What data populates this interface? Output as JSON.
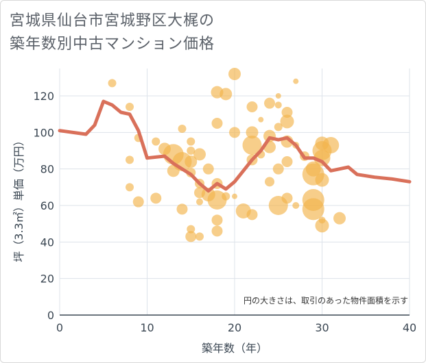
{
  "title_line1": "宮城県仙台市宮城野区大梶の",
  "title_line2": "築年数別中古マンション価格",
  "chart_data": {
    "type": "scatter",
    "title": "宮城県仙台市宮城野区大梶の築年数別中古マンション価格",
    "xlabel": "築年数（年）",
    "ylabel": "坪（3.3㎡）単価（万円）",
    "xlim": [
      0,
      40
    ],
    "ylim": [
      0,
      135
    ],
    "x_ticks": [
      0,
      10,
      20,
      30,
      40
    ],
    "y_ticks": [
      0,
      20,
      40,
      60,
      80,
      100,
      120
    ],
    "grid": true,
    "note": "円の大きさは、取引のあった物件面積を示す",
    "bubble_color": "#f2b44c",
    "line_color": "#d9705a",
    "bubbles": [
      {
        "x": 6,
        "y": 127,
        "r": 6
      },
      {
        "x": 8,
        "y": 114,
        "r": 6
      },
      {
        "x": 9,
        "y": 97,
        "r": 6
      },
      {
        "x": 8,
        "y": 85,
        "r": 6
      },
      {
        "x": 8,
        "y": 70,
        "r": 6
      },
      {
        "x": 9,
        "y": 62,
        "r": 8
      },
      {
        "x": 11,
        "y": 95,
        "r": 6
      },
      {
        "x": 11,
        "y": 64,
        "r": 8
      },
      {
        "x": 12,
        "y": 91,
        "r": 9
      },
      {
        "x": 13,
        "y": 88,
        "r": 15
      },
      {
        "x": 13,
        "y": 79,
        "r": 9
      },
      {
        "x": 14,
        "y": 102,
        "r": 6
      },
      {
        "x": 14,
        "y": 84,
        "r": 14
      },
      {
        "x": 14,
        "y": 58,
        "r": 8
      },
      {
        "x": 15,
        "y": 95,
        "r": 6
      },
      {
        "x": 15,
        "y": 90,
        "r": 6
      },
      {
        "x": 15,
        "y": 84,
        "r": 9
      },
      {
        "x": 15,
        "y": 78,
        "r": 7
      },
      {
        "x": 15,
        "y": 47,
        "r": 6
      },
      {
        "x": 15,
        "y": 43,
        "r": 8
      },
      {
        "x": 16,
        "y": 88,
        "r": 9
      },
      {
        "x": 16,
        "y": 72,
        "r": 7
      },
      {
        "x": 16,
        "y": 67,
        "r": 8
      },
      {
        "x": 16,
        "y": 62,
        "r": 5
      },
      {
        "x": 16,
        "y": 43,
        "r": 6
      },
      {
        "x": 17,
        "y": 80,
        "r": 8
      },
      {
        "x": 17,
        "y": 66,
        "r": 10
      },
      {
        "x": 18,
        "y": 122,
        "r": 9
      },
      {
        "x": 18,
        "y": 105,
        "r": 8
      },
      {
        "x": 18,
        "y": 72,
        "r": 8
      },
      {
        "x": 18,
        "y": 63,
        "r": 14
      },
      {
        "x": 18,
        "y": 52,
        "r": 8
      },
      {
        "x": 18,
        "y": 46,
        "r": 8
      },
      {
        "x": 19,
        "y": 121,
        "r": 9
      },
      {
        "x": 19,
        "y": 65,
        "r": 6
      },
      {
        "x": 20,
        "y": 132,
        "r": 9
      },
      {
        "x": 20,
        "y": 100,
        "r": 8
      },
      {
        "x": 20,
        "y": 65,
        "r": 4
      },
      {
        "x": 21,
        "y": 57,
        "r": 11
      },
      {
        "x": 22,
        "y": 114,
        "r": 8
      },
      {
        "x": 22,
        "y": 100,
        "r": 9
      },
      {
        "x": 22,
        "y": 93,
        "r": 14
      },
      {
        "x": 22,
        "y": 85,
        "r": 8
      },
      {
        "x": 22,
        "y": 55,
        "r": 8
      },
      {
        "x": 23,
        "y": 107,
        "r": 4
      },
      {
        "x": 23,
        "y": 88,
        "r": 6
      },
      {
        "x": 24,
        "y": 116,
        "r": 8
      },
      {
        "x": 24,
        "y": 98,
        "r": 9
      },
      {
        "x": 24,
        "y": 92,
        "r": 9
      },
      {
        "x": 24,
        "y": 73,
        "r": 7
      },
      {
        "x": 25,
        "y": 120,
        "r": 4
      },
      {
        "x": 25,
        "y": 115,
        "r": 5
      },
      {
        "x": 25,
        "y": 103,
        "r": 6
      },
      {
        "x": 25,
        "y": 80,
        "r": 8
      },
      {
        "x": 25,
        "y": 60,
        "r": 14
      },
      {
        "x": 26,
        "y": 111,
        "r": 8
      },
      {
        "x": 26,
        "y": 106,
        "r": 10
      },
      {
        "x": 26,
        "y": 95,
        "r": 9
      },
      {
        "x": 26,
        "y": 84,
        "r": 8
      },
      {
        "x": 26,
        "y": 64,
        "r": 8
      },
      {
        "x": 27,
        "y": 128,
        "r": 4
      },
      {
        "x": 27,
        "y": 93,
        "r": 5
      },
      {
        "x": 27,
        "y": 60,
        "r": 5
      },
      {
        "x": 28,
        "y": 87,
        "r": 7
      },
      {
        "x": 29,
        "y": 80,
        "r": 11
      },
      {
        "x": 29,
        "y": 77,
        "r": 16
      },
      {
        "x": 29,
        "y": 63,
        "r": 16
      },
      {
        "x": 29,
        "y": 58,
        "r": 16
      },
      {
        "x": 30,
        "y": 94,
        "r": 10
      },
      {
        "x": 30,
        "y": 90,
        "r": 14
      },
      {
        "x": 30,
        "y": 86,
        "r": 12
      },
      {
        "x": 30,
        "y": 74,
        "r": 10
      },
      {
        "x": 30,
        "y": 52,
        "r": 5
      },
      {
        "x": 30,
        "y": 49,
        "r": 10
      },
      {
        "x": 31,
        "y": 93,
        "r": 12
      },
      {
        "x": 32,
        "y": 53,
        "r": 9
      }
    ],
    "line": {
      "x": [
        0,
        3,
        4,
        5,
        6,
        7,
        8,
        9,
        10,
        12,
        13,
        14,
        15,
        16,
        17,
        18,
        19,
        20,
        21,
        22,
        23,
        24,
        25,
        26,
        27,
        28,
        29,
        30,
        31,
        32,
        33,
        34,
        36,
        38,
        40
      ],
      "y": [
        101,
        99,
        104,
        117,
        115,
        111,
        110,
        101,
        86,
        87,
        83,
        80,
        77,
        72,
        68,
        72,
        69,
        73,
        79,
        85,
        90,
        97,
        96,
        97,
        93,
        86,
        86,
        84,
        79,
        80,
        81,
        77,
        75.5,
        74.5,
        73
      ]
    }
  }
}
